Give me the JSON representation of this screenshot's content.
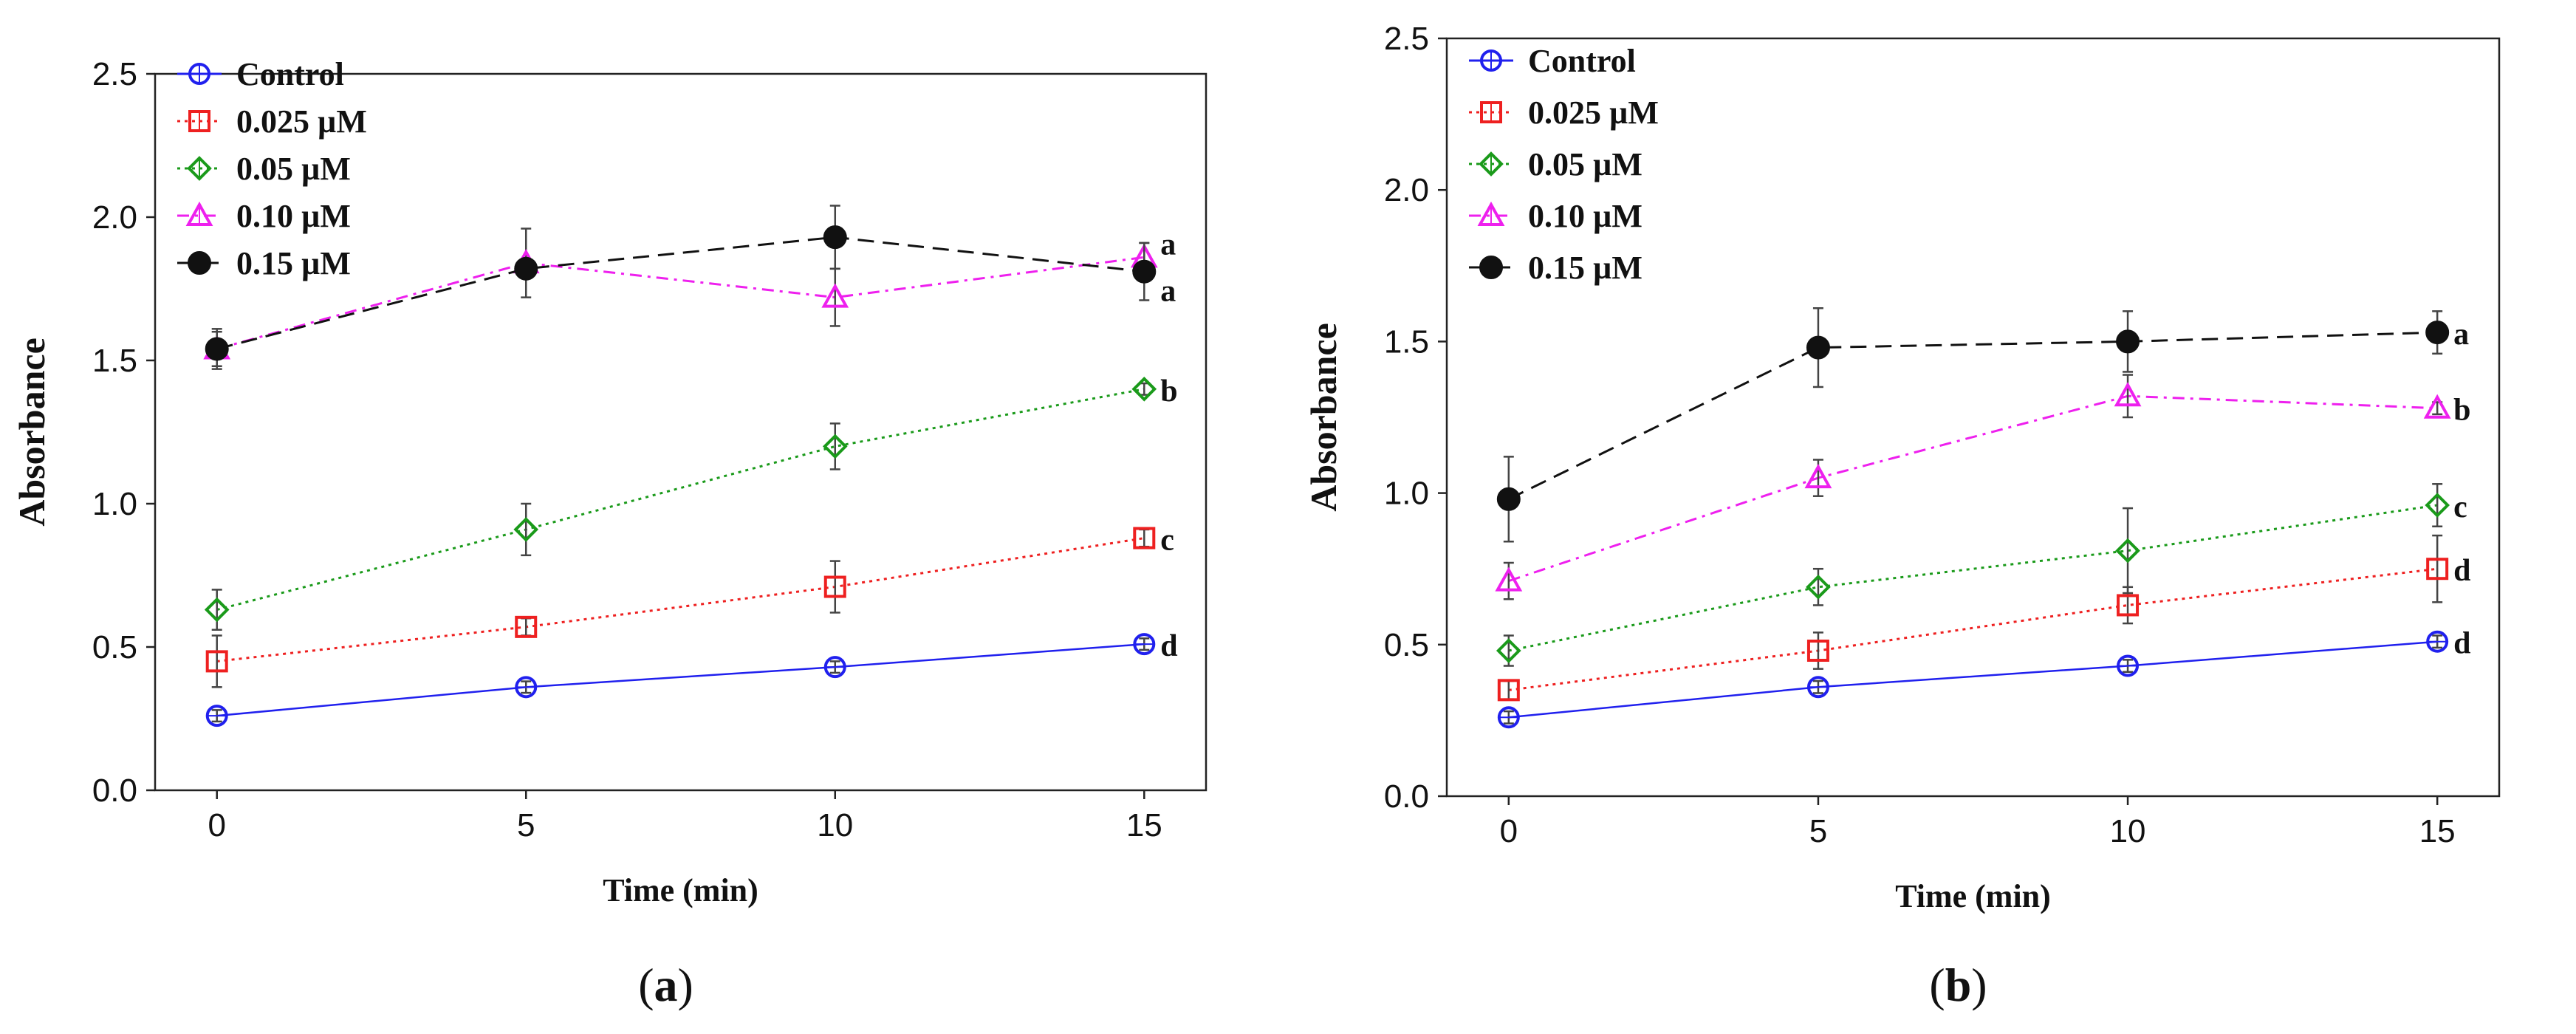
{
  "colors": {
    "control": "#2020ee",
    "c0025": "#ee2020",
    "c005": "#1a9a1a",
    "c010": "#ee20ee",
    "c015": "#111111",
    "err_grey": "#444444"
  },
  "chart_data": [
    {
      "type": "line",
      "panel_label": "a",
      "xlabel": "Time (min)",
      "ylabel": "Absorbance",
      "x": [
        0,
        5,
        10,
        15
      ],
      "xticks": [
        "0",
        "5",
        "10",
        "15"
      ],
      "xlim": [
        -1,
        16
      ],
      "ylim": [
        0,
        2.5
      ],
      "yticks": [
        "0.0",
        "0.5",
        "1.0",
        "1.5",
        "2.0",
        "2.5"
      ],
      "legend_position": "top-left",
      "series": [
        {
          "name": "Control",
          "key": "control",
          "marker": "circle",
          "dash": "solid",
          "values": [
            0.26,
            0.36,
            0.43,
            0.51
          ],
          "err": [
            0.02,
            0.02,
            0.02,
            0.02
          ],
          "group": "d"
        },
        {
          "name": "0.025 µM",
          "key": "c0025",
          "marker": "square",
          "dash": "dotted",
          "values": [
            0.45,
            0.57,
            0.71,
            0.88
          ],
          "err": [
            0.09,
            0.03,
            0.09,
            0.03
          ],
          "group": "c"
        },
        {
          "name": "0.05 µM",
          "key": "c005",
          "marker": "diamond",
          "dash": "dotted",
          "values": [
            0.63,
            0.91,
            1.2,
            1.4
          ],
          "err": [
            0.07,
            0.09,
            0.08,
            0.02
          ],
          "group": "b"
        },
        {
          "name": "0.10 µM",
          "key": "c010",
          "marker": "triangle",
          "dash": "dashdot",
          "values": [
            1.54,
            1.84,
            1.72,
            1.86
          ],
          "err": [
            0.07,
            0.12,
            0.1,
            0.05
          ],
          "group": "a"
        },
        {
          "name": "0.15 µM",
          "key": "c015",
          "marker": "filled-circle",
          "dash": "dashed",
          "values": [
            1.54,
            1.82,
            1.93,
            1.81
          ],
          "err": [
            0.06,
            0.03,
            0.11,
            0.1
          ],
          "group": "a"
        }
      ]
    },
    {
      "type": "line",
      "panel_label": "b",
      "xlabel": "Time (min)",
      "ylabel": "Absorbance",
      "x": [
        0,
        5,
        10,
        15
      ],
      "xticks": [
        "0",
        "5",
        "10",
        "15"
      ],
      "xlim": [
        -1,
        16
      ],
      "ylim": [
        0,
        2.5
      ],
      "yticks": [
        "0.0",
        "0.5",
        "1.0",
        "1.5",
        "2.0",
        "2.5"
      ],
      "legend_position": "top-left",
      "series": [
        {
          "name": "Control",
          "key": "control",
          "marker": "circle",
          "dash": "solid",
          "values": [
            0.26,
            0.36,
            0.43,
            0.51
          ],
          "err": [
            0.02,
            0.02,
            0.02,
            0.02
          ],
          "group": "d"
        },
        {
          "name": "0.025 µM",
          "key": "c0025",
          "marker": "square",
          "dash": "dotted",
          "values": [
            0.35,
            0.48,
            0.63,
            0.75
          ],
          "err": [
            0.03,
            0.06,
            0.06,
            0.11
          ],
          "group": "d"
        },
        {
          "name": "0.05 µM",
          "key": "c005",
          "marker": "diamond",
          "dash": "dotted",
          "values": [
            0.48,
            0.69,
            0.81,
            0.96
          ],
          "err": [
            0.05,
            0.06,
            0.14,
            0.07
          ],
          "group": "c"
        },
        {
          "name": "0.10 µM",
          "key": "c010",
          "marker": "triangle",
          "dash": "dashdot",
          "values": [
            0.71,
            1.05,
            1.32,
            1.28
          ],
          "err": [
            0.06,
            0.06,
            0.07,
            0.02
          ],
          "group": "b"
        },
        {
          "name": "0.15 µM",
          "key": "c015",
          "marker": "filled-circle",
          "dash": "dashed",
          "values": [
            0.98,
            1.48,
            1.5,
            1.53
          ],
          "err": [
            0.14,
            0.13,
            0.1,
            0.07
          ],
          "group": "a"
        }
      ]
    }
  ]
}
